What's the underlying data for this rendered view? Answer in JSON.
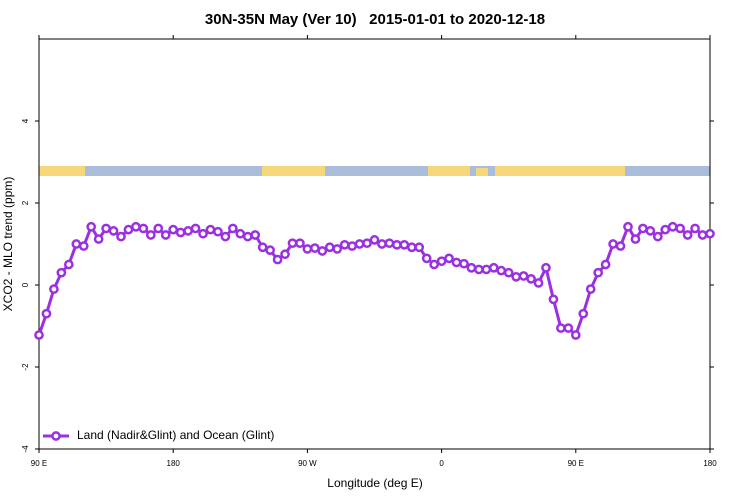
{
  "chart_data": {
    "type": "line",
    "title": "30N-35N May (Ver 10)   2015-01-01 to 2020-12-18",
    "x_label": "Longitude (deg E)",
    "y_label": "XCO2 - MLO trend (ppm)",
    "xlim": [
      90,
      540
    ],
    "xticks": [
      {
        "value": 90,
        "label": "90 E"
      },
      180,
      {
        "value": 270,
        "label": "90 W"
      },
      {
        "value": 360,
        "label": "0"
      },
      {
        "value": 450,
        "label": "90 E"
      },
      {
        "value": 540,
        "label": "180"
      }
    ],
    "ylim": [
      -4,
      6
    ],
    "yticks": [
      -4,
      -2,
      0,
      2,
      4
    ],
    "legend": "bottom-left",
    "x": [
      90,
      95,
      100,
      105,
      110,
      115,
      120,
      125,
      130,
      135,
      140,
      145,
      150,
      155,
      160,
      165,
      170,
      175,
      180,
      185,
      190,
      195,
      200,
      205,
      210,
      215,
      220,
      225,
      230,
      235,
      240,
      245,
      250,
      255,
      260,
      265,
      270,
      275,
      280,
      285,
      290,
      295,
      300,
      305,
      310,
      315,
      320,
      325,
      330,
      335,
      340,
      345,
      350,
      355,
      360,
      365,
      370,
      375,
      380,
      385,
      390,
      395,
      400,
      405,
      410,
      415,
      420,
      425,
      430,
      435,
      440,
      445,
      450,
      455,
      460,
      465,
      470,
      475,
      480,
      485,
      490,
      495,
      500,
      505,
      510,
      515,
      520,
      525,
      530,
      535,
      540
    ],
    "series": [
      {
        "name": "Land (Nadir&Glint) and Ocean (Glint)",
        "color": "#9b30e0",
        "values": [
          -1.22,
          -0.7,
          -0.1,
          0.3,
          0.5,
          1.0,
          0.95,
          1.42,
          1.12,
          1.38,
          1.32,
          1.18,
          1.35,
          1.42,
          1.38,
          1.22,
          1.38,
          1.22,
          1.35,
          1.28,
          1.32,
          1.38,
          1.25,
          1.35,
          1.3,
          1.18,
          1.38,
          1.25,
          1.18,
          1.22,
          0.92,
          0.85,
          0.62,
          0.75,
          1.02,
          1.02,
          0.88,
          0.9,
          0.83,
          0.92,
          0.88,
          0.98,
          0.95,
          1.0,
          1.02,
          1.1,
          1.0,
          1.02,
          0.98,
          0.98,
          0.92,
          0.92,
          0.65,
          0.5,
          0.58,
          0.65,
          0.55,
          0.52,
          0.42,
          0.38,
          0.38,
          0.42,
          0.35,
          0.3,
          0.2,
          0.22,
          0.15,
          0.05,
          0.42,
          -0.35,
          -1.05,
          -1.05,
          -1.22,
          -0.7,
          -0.1,
          0.3,
          0.5,
          1.0,
          0.95,
          1.42,
          1.12,
          1.38,
          1.32,
          1.18,
          1.35,
          1.42,
          1.38,
          1.22,
          1.38,
          1.22,
          1.25
        ]
      }
    ]
  }
}
